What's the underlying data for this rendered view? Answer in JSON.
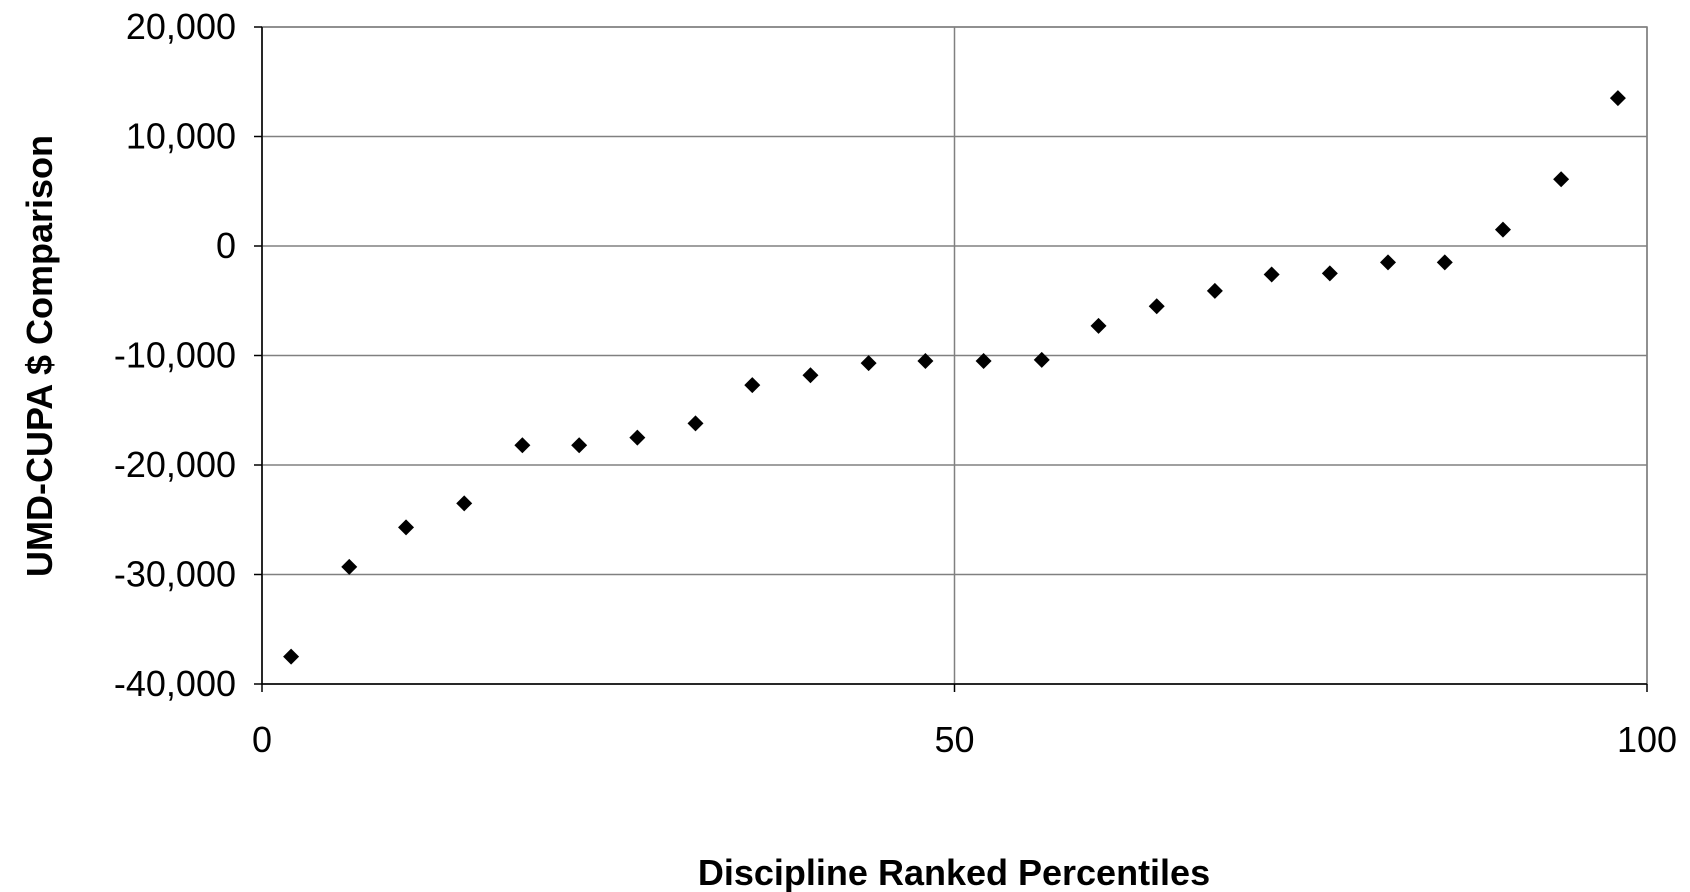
{
  "chart_data": {
    "type": "scatter",
    "title": "",
    "xlabel": "Discipline Ranked Percentiles",
    "ylabel": "UMD-CUPA $ Comparison",
    "xlim": [
      0,
      100
    ],
    "ylim": [
      -40000,
      20000
    ],
    "x_ticks": [
      0,
      50,
      100
    ],
    "x_tick_labels": [
      "0",
      "50",
      "100"
    ],
    "y_ticks": [
      20000,
      10000,
      0,
      -10000,
      -20000,
      -30000,
      -40000
    ],
    "y_tick_labels": [
      "20,000",
      "10,000",
      "0",
      "-10,000",
      "-20,000",
      "-30,000",
      "-40,000"
    ],
    "grid": true,
    "legend": "none",
    "marker": "diamond",
    "colors": {
      "marker": "#000000",
      "grid": "#808080",
      "frame": "#808080",
      "axis": "#000000"
    },
    "series": [
      {
        "x": [
          2.1,
          6.3,
          10.4,
          14.6,
          18.8,
          22.9,
          27.1,
          31.3,
          35.4,
          39.6,
          43.8,
          47.9,
          52.1,
          56.3,
          60.4,
          64.6,
          68.8,
          72.9,
          77.1,
          81.3,
          85.4,
          89.6,
          93.8,
          97.9
        ],
        "y": [
          -37500,
          -29300,
          -25700,
          -23500,
          -18200,
          -18200,
          -17500,
          -16200,
          -12700,
          -11800,
          -10700,
          -10500,
          -10500,
          -10400,
          -7300,
          -5500,
          -4100,
          -2600,
          -2500,
          -1500,
          -1500,
          1500,
          6100,
          13500
        ]
      }
    ]
  }
}
